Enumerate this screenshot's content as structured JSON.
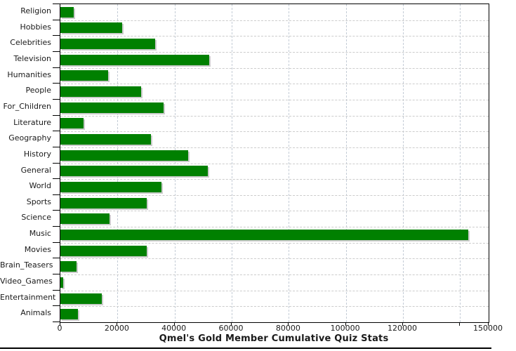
{
  "chart_data": {
    "type": "bar",
    "orientation": "horizontal",
    "title": "Qmel's Gold Member Cumulative Quiz Stats",
    "categories": [
      "Religion",
      "Hobbies",
      "Celebrities",
      "Television",
      "Humanities",
      "People",
      "For_Children",
      "Literature",
      "Geography",
      "History",
      "General",
      "World",
      "Sports",
      "Science",
      "Music",
      "Movies",
      "Brain_Teasers",
      "Video_Games",
      "Entertainment",
      "Animals"
    ],
    "values": [
      4700,
      21600,
      33200,
      52200,
      16700,
      28300,
      36200,
      8100,
      31700,
      44800,
      51600,
      35500,
      30300,
      17200,
      142900,
      30300,
      5700,
      1000,
      14600,
      6100
    ],
    "xlim": [
      0,
      150000
    ],
    "x_ticks": [
      {
        "value": 0,
        "label": "0"
      },
      {
        "value": 20000,
        "label": "20000"
      },
      {
        "value": 40000,
        "label": "40000"
      },
      {
        "value": 60000,
        "label": "60000"
      },
      {
        "value": 80000,
        "label": "80000"
      },
      {
        "value": 100000,
        "label": "100000"
      },
      {
        "value": 120000,
        "label": "120000"
      },
      {
        "value": 140000,
        "label": ""
      },
      {
        "value": 150000,
        "label": "150000"
      }
    ],
    "grid": true,
    "legend": "none",
    "colors": {
      "bar": "#008000",
      "bar_shadow": "#cccccc",
      "vertical_grid": "#c4ccd6",
      "horizontal_grid": "#cccccc",
      "axis": "#000000",
      "text": "#1a1a1a",
      "background": "#ffffff"
    }
  }
}
